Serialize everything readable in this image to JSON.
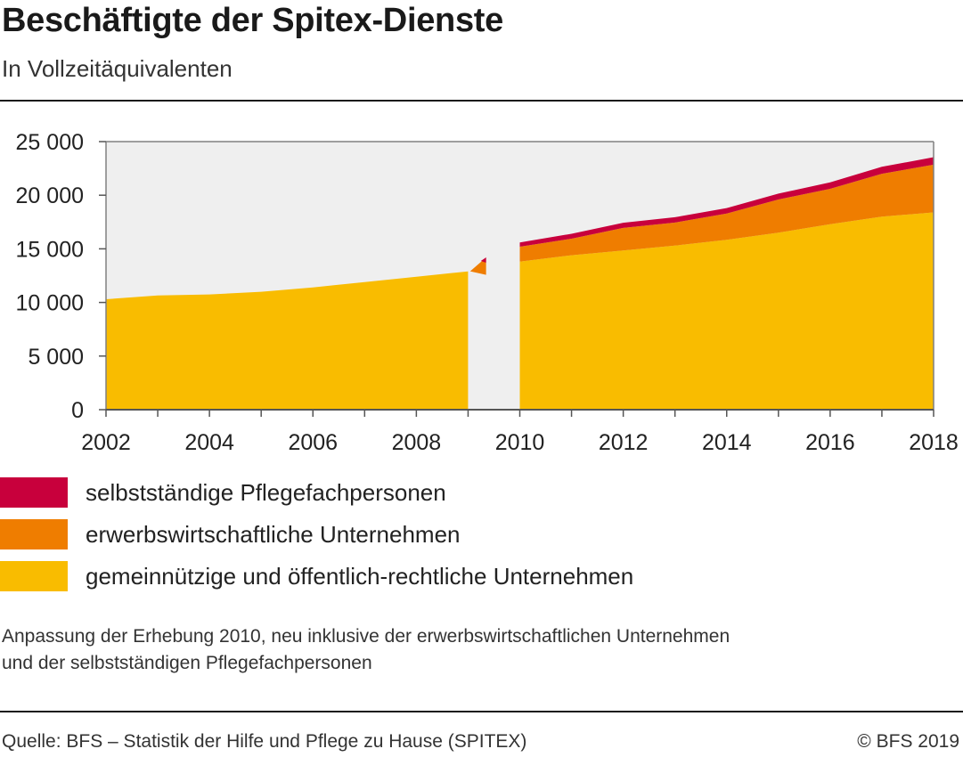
{
  "header": {
    "title": "Beschäftigte der Spitex-Dienste",
    "subtitle": "In Vollzeitäquivalenten"
  },
  "chart_data": {
    "type": "area",
    "stacked": true,
    "x": [
      2002,
      2003,
      2004,
      2005,
      2006,
      2007,
      2008,
      2009,
      2010,
      2011,
      2012,
      2013,
      2014,
      2015,
      2016,
      2017,
      2018
    ],
    "series": [
      {
        "name": "gemeinnützige und öffentlich-rechtliche Unternehmen",
        "color": "#F9BC00",
        "values": [
          10300,
          10650,
          10750,
          11000,
          11400,
          11900,
          12400,
          12900,
          13800,
          14400,
          14850,
          15300,
          15850,
          16500,
          17300,
          18000,
          18400
        ]
      },
      {
        "name": "erwerbswirtschaftliche Unternehmen",
        "color": "#EF7D00",
        "values": [
          0,
          0,
          0,
          0,
          0,
          0,
          0,
          0,
          1400,
          1550,
          2100,
          2150,
          2450,
          3100,
          3300,
          4000,
          4450
        ]
      },
      {
        "name": "selbstständige Pflegefachpersonen",
        "color": "#C8003C",
        "values": [
          0,
          0,
          0,
          0,
          0,
          0,
          0,
          0,
          400,
          450,
          480,
          500,
          500,
          550,
          600,
          650,
          700
        ]
      }
    ],
    "xticks": [
      "2002",
      "2004",
      "2006",
      "2008",
      "2010",
      "2012",
      "2014",
      "2016",
      "2018"
    ],
    "yticks": [
      "0",
      "5 000",
      "10 000",
      "15 000",
      "20 000",
      "25 000"
    ],
    "ylim": [
      0,
      25000
    ],
    "xlim": [
      2002,
      2018
    ],
    "break_between": [
      2009,
      2010
    ],
    "plot_background": "#EFEFEF",
    "legend_position": "bottom",
    "grid": false
  },
  "legend": [
    {
      "label": "selbstständige Pflegefachpersonen",
      "color": "#C8003C"
    },
    {
      "label": "erwerbswirtschaftliche Unternehmen",
      "color": "#EF7D00"
    },
    {
      "label": "gemeinnützige und öffentlich-rechtliche Unternehmen",
      "color": "#F9BC00"
    }
  ],
  "footnote": {
    "line1": "Anpassung der Erhebung 2010, neu inklusive der erwerbswirtschaftlichen Unternehmen",
    "line2": "und der selbstständigen Pflegefachpersonen"
  },
  "footer": {
    "source": "Quelle: BFS – Statistik der Hilfe und Pflege zu Hause (SPITEX)",
    "copyright": "© BFS 2019"
  }
}
